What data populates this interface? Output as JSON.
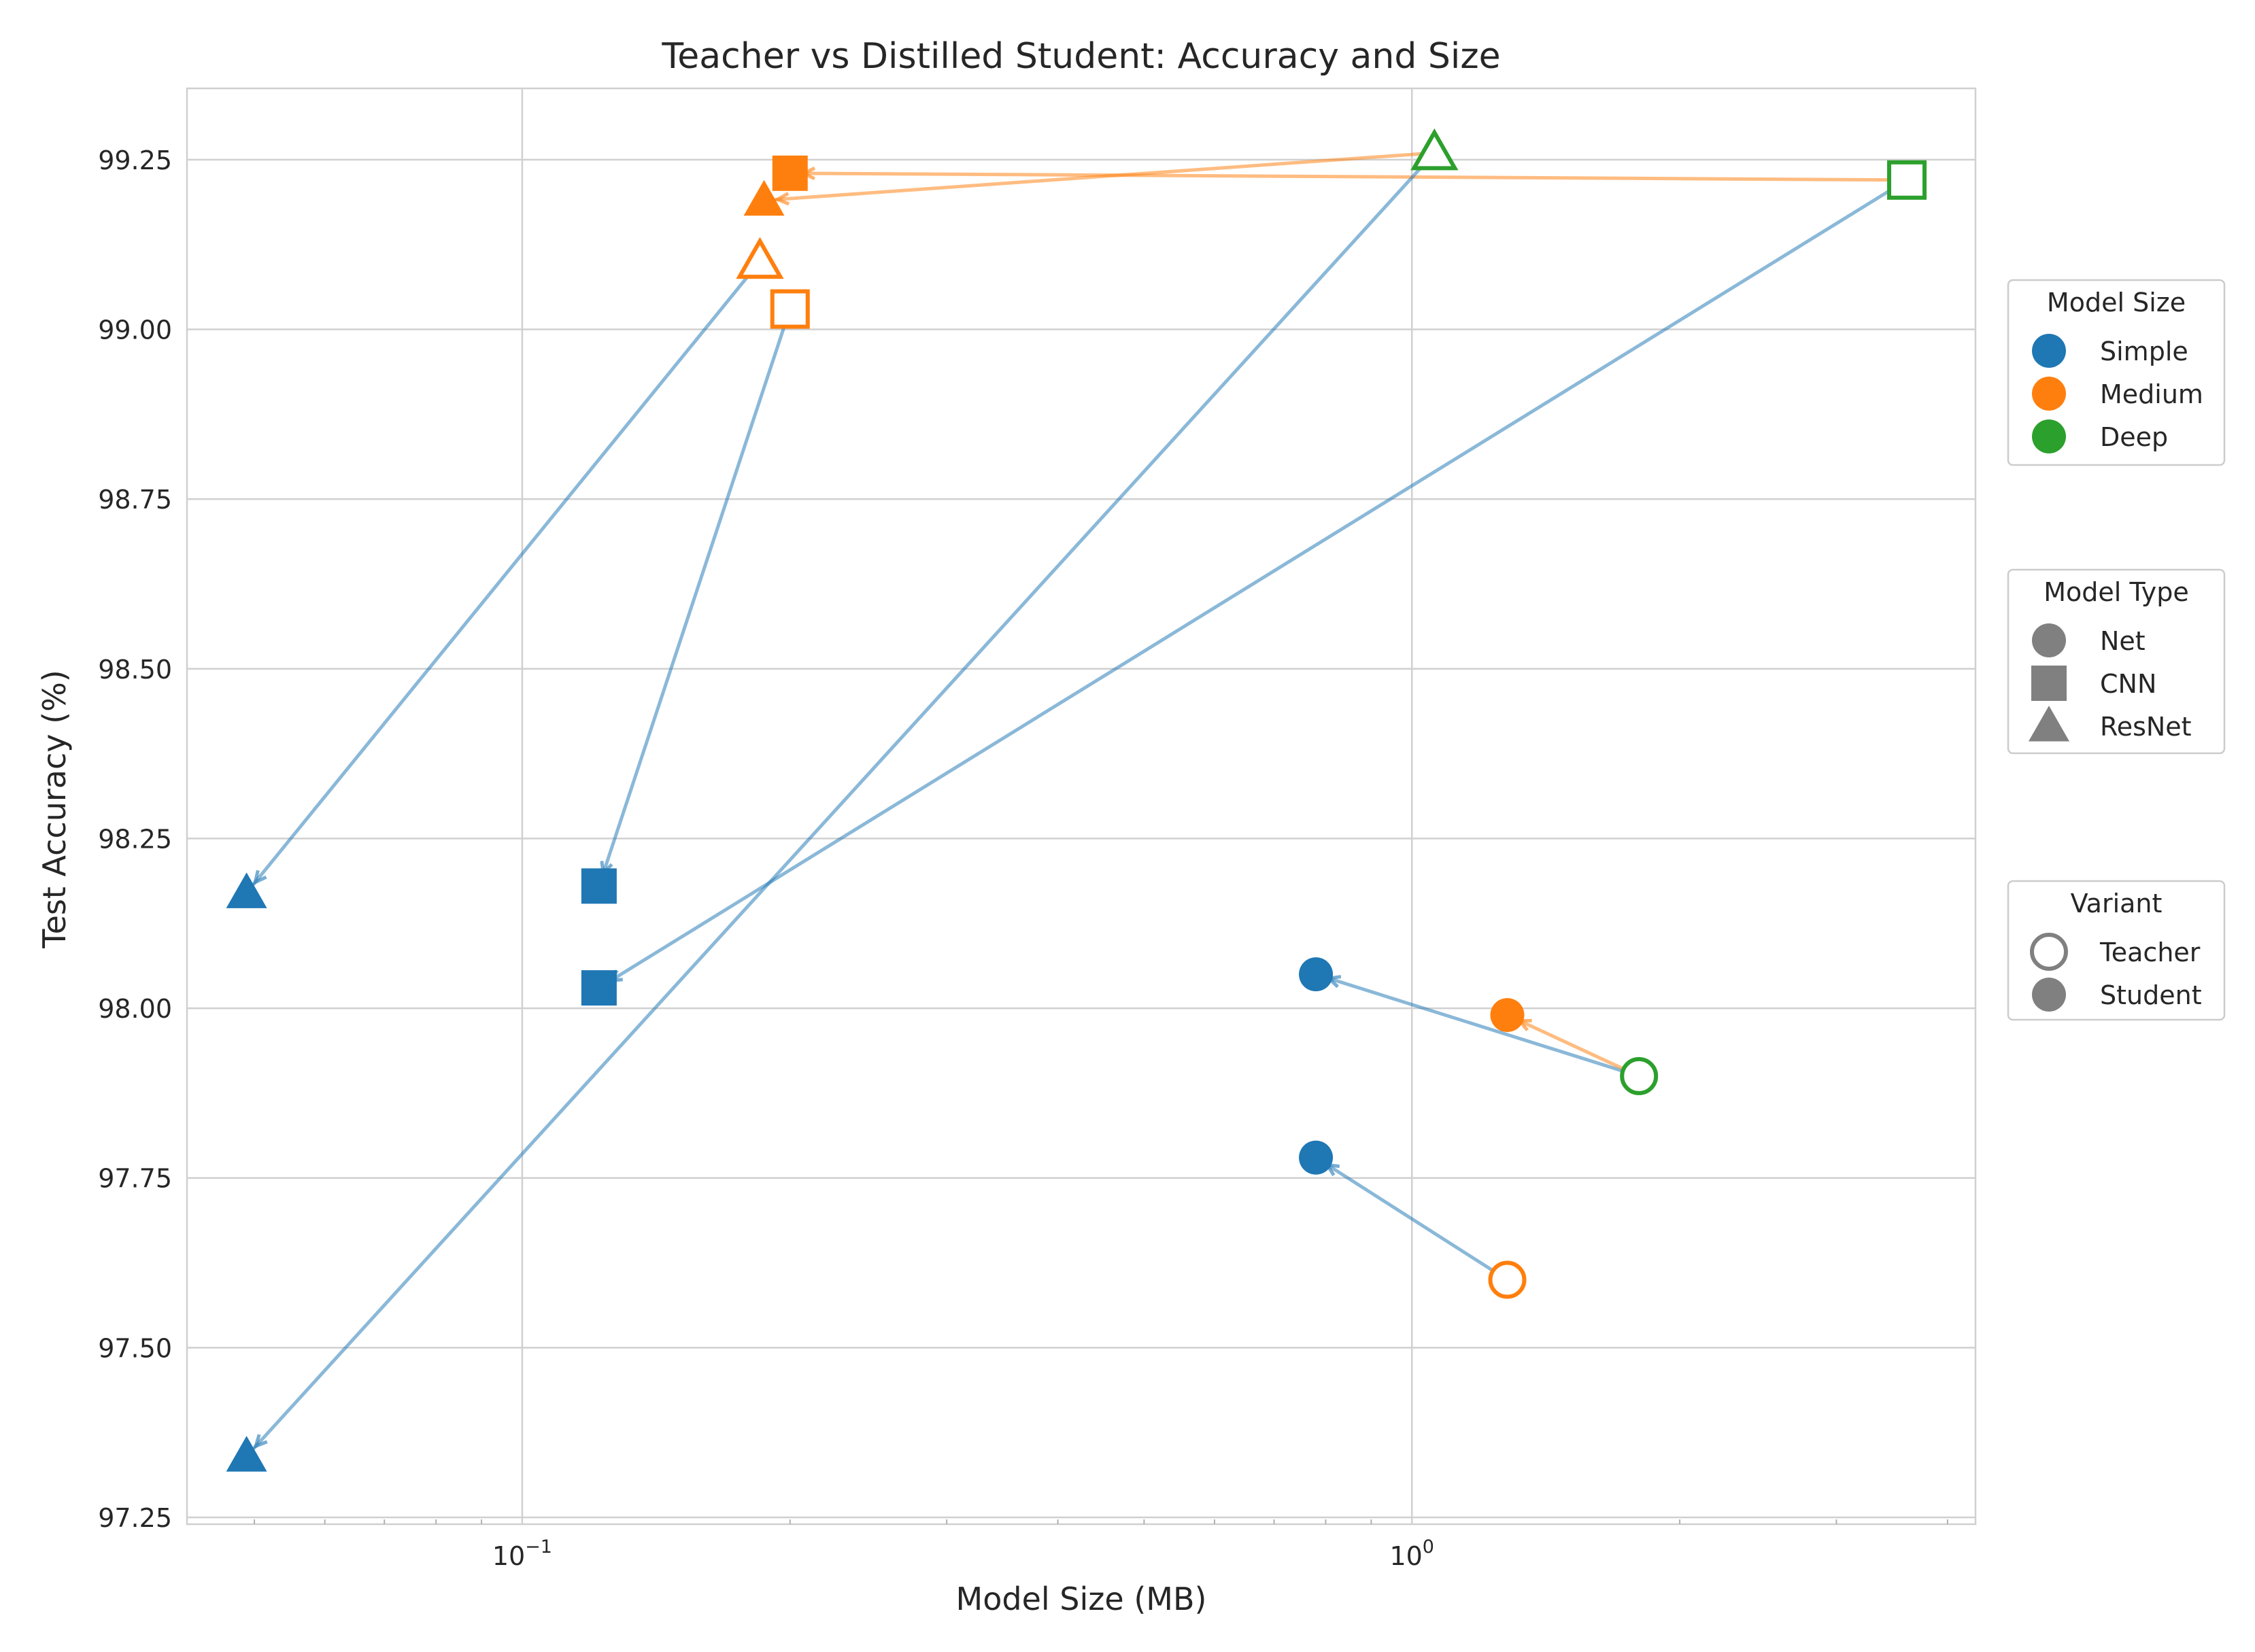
{
  "chart_data": {
    "type": "scatter",
    "title": "Teacher vs Distilled Student: Accuracy and Size",
    "xlabel": "Model Size (MB)",
    "ylabel": "Test Accuracy (%)",
    "xscale": "log",
    "xlim": [
      0.042,
      4.3
    ],
    "ylim": [
      97.24,
      99.355
    ],
    "x_ticks": [
      {
        "value": 0.1,
        "base": "10",
        "exp": "−1"
      },
      {
        "value": 1,
        "base": "10",
        "exp": "0"
      }
    ],
    "y_ticks": [
      97.25,
      97.5,
      97.75,
      98.0,
      98.25,
      98.5,
      98.75,
      99.0,
      99.25
    ],
    "y_tick_labels": [
      "97.25",
      "97.50",
      "97.75",
      "98.00",
      "98.25",
      "98.50",
      "98.75",
      "99.00",
      "99.25"
    ],
    "grid": true,
    "colors": {
      "Simple": "#1f77b4",
      "Medium": "#ff7f0e",
      "Deep": "#2ca02c"
    },
    "pairs": [
      {
        "type": "Net",
        "teacher": {
          "size": "Medium",
          "x": 1.28,
          "y": 97.6
        },
        "student": {
          "size": "Simple",
          "x": 0.78,
          "y": 97.78
        }
      },
      {
        "type": "Net",
        "teacher": {
          "size": "Deep",
          "x": 1.8,
          "y": 97.9
        },
        "student": {
          "size": "Simple",
          "x": 0.78,
          "y": 98.05
        }
      },
      {
        "type": "Net",
        "teacher": {
          "size": "Deep",
          "x": 1.8,
          "y": 97.9
        },
        "student": {
          "size": "Medium",
          "x": 1.28,
          "y": 97.99
        }
      },
      {
        "type": "CNN",
        "teacher": {
          "size": "Medium",
          "x": 0.2,
          "y": 99.03
        },
        "student": {
          "size": "Simple",
          "x": 0.122,
          "y": 98.18
        }
      },
      {
        "type": "CNN",
        "teacher": {
          "size": "Deep",
          "x": 3.6,
          "y": 99.22
        },
        "student": {
          "size": "Simple",
          "x": 0.122,
          "y": 98.03
        }
      },
      {
        "type": "CNN",
        "teacher": {
          "size": "Deep",
          "x": 3.6,
          "y": 99.22
        },
        "student": {
          "size": "Medium",
          "x": 0.2,
          "y": 99.23
        }
      },
      {
        "type": "ResNet",
        "teacher": {
          "size": "Medium",
          "x": 0.185,
          "y": 99.1
        },
        "student": {
          "size": "Simple",
          "x": 0.049,
          "y": 98.17
        }
      },
      {
        "type": "ResNet",
        "teacher": {
          "size": "Deep",
          "x": 1.06,
          "y": 99.26
        },
        "student": {
          "size": "Simple",
          "x": 0.049,
          "y": 97.34
        }
      },
      {
        "type": "ResNet",
        "teacher": {
          "size": "Deep",
          "x": 1.06,
          "y": 99.26
        },
        "student": {
          "size": "Medium",
          "x": 0.187,
          "y": 99.19
        }
      }
    ],
    "legends": [
      {
        "title": "Model Size",
        "entries": [
          {
            "label": "Simple",
            "marker": "circle",
            "color": "#1f77b4",
            "fill": true
          },
          {
            "label": "Medium",
            "marker": "circle",
            "color": "#ff7f0e",
            "fill": true
          },
          {
            "label": "Deep",
            "marker": "circle",
            "color": "#2ca02c",
            "fill": true
          }
        ]
      },
      {
        "title": "Model Type",
        "entries": [
          {
            "label": "Net",
            "marker": "circle",
            "color": "#808080",
            "fill": true
          },
          {
            "label": "CNN",
            "marker": "square",
            "color": "#808080",
            "fill": true
          },
          {
            "label": "ResNet",
            "marker": "triangle",
            "color": "#808080",
            "fill": true
          }
        ]
      },
      {
        "title": "Variant",
        "entries": [
          {
            "label": "Teacher",
            "marker": "circle",
            "color": "#808080",
            "fill": false
          },
          {
            "label": "Student",
            "marker": "circle",
            "color": "#808080",
            "fill": true
          }
        ]
      }
    ],
    "legend_position": "right"
  }
}
